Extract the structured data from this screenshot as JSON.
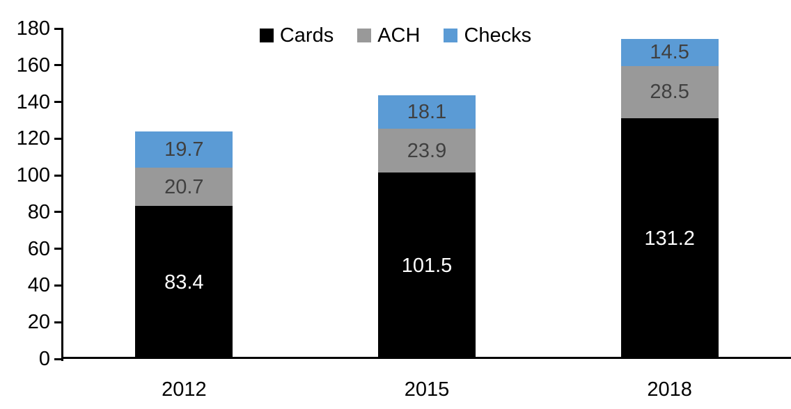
{
  "chart_data": {
    "type": "bar",
    "stacked": true,
    "title": "",
    "xlabel": "",
    "ylabel": "",
    "categories": [
      "2012",
      "2015",
      "2018"
    ],
    "series": [
      {
        "name": "Cards",
        "values": [
          83.4,
          101.5,
          131.2
        ],
        "color": "#000000",
        "label_color": "#ffffff"
      },
      {
        "name": "ACH",
        "values": [
          20.7,
          23.9,
          28.5
        ],
        "color": "#999999",
        "label_color": "#404040"
      },
      {
        "name": "Checks",
        "values": [
          19.7,
          18.1,
          14.5
        ],
        "color": "#5b9bd5",
        "label_color": "#404040"
      }
    ],
    "data_labels": true,
    "ylim": [
      0,
      180
    ],
    "yticks": [
      0,
      20,
      40,
      60,
      80,
      100,
      120,
      140,
      160,
      180
    ],
    "grid": false,
    "legend_position": "top-center",
    "axis_color": "#000000",
    "background_color": "#ffffff"
  }
}
